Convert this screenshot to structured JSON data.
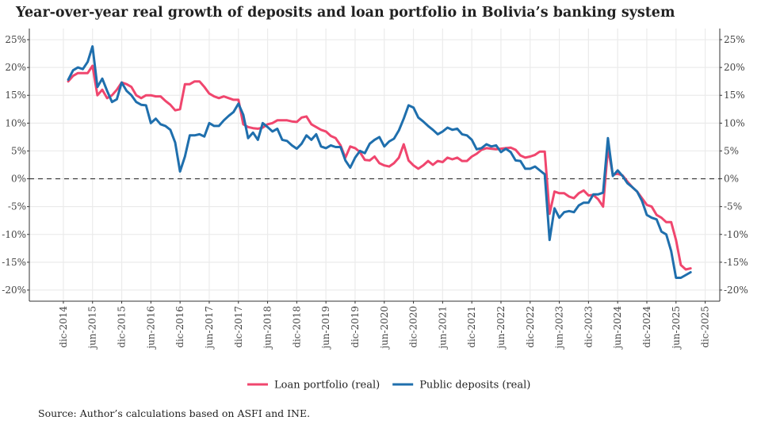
{
  "chart_data": {
    "type": "line",
    "title": "Year-over-year real growth of deposits and loan portfolio in Bolivia’s banking system",
    "source": "Source: Author’s calculations based on ASFI and INE.",
    "xlabel": "",
    "ylabel": "",
    "ylim": [
      -22,
      27
    ],
    "y_ticks": [
      25,
      20,
      15,
      10,
      5,
      0,
      -5,
      -10,
      -15,
      -20
    ],
    "y_tick_labels": [
      "25%",
      "20%",
      "15%",
      "10%",
      "5%",
      "0%",
      "-5%",
      "-10%",
      "-15%",
      "-20%"
    ],
    "x_tick_labels": [
      "dic-2014",
      "jun-2015",
      "dic-2015",
      "jun-2016",
      "dic-2016",
      "jun-2017",
      "dic-2017",
      "jun-2018",
      "dic-2018",
      "jun-2019",
      "dic-2019",
      "jun-2020",
      "dic-2020",
      "jun-2021",
      "dic-2021",
      "jun-2022",
      "dic-2022",
      "jun-2023",
      "dic-2023",
      "jun-2024",
      "dic-2024",
      "jun-2025",
      "dic-2025"
    ],
    "x_ticks": [
      "2014-12",
      "2015-06",
      "2015-12",
      "2016-06",
      "2016-12",
      "2017-06",
      "2017-12",
      "2018-06",
      "2018-12",
      "2019-06",
      "2019-12",
      "2020-06",
      "2020-12",
      "2021-06",
      "2021-12",
      "2022-06",
      "2022-12",
      "2023-06",
      "2023-12",
      "2024-06",
      "2024-12",
      "2025-06",
      "2025-12"
    ],
    "xlim": [
      "2014-05",
      "2026-03"
    ],
    "grid": true,
    "reference_line": {
      "y": 0,
      "style": "dashed"
    },
    "legend_position": "bottom",
    "dates_start": "2015-01",
    "frequency": "monthly",
    "series": [
      {
        "name": "Loan portfolio (real)",
        "color": "#f0466e",
        "values": [
          17.5,
          18.5,
          19,
          19,
          19,
          20.3,
          15,
          16,
          14.5,
          15,
          16,
          17.3,
          17,
          16.5,
          15,
          14.5,
          15,
          15,
          14.8,
          14.8,
          14,
          13.3,
          12.3,
          12.5,
          17,
          17,
          17.5,
          17.5,
          16.5,
          15.3,
          14.8,
          14.5,
          14.8,
          14.5,
          14.2,
          14.2,
          9.8,
          9.3,
          9.1,
          9,
          9.2,
          9.8,
          10,
          10.5,
          10.5,
          10.5,
          10.3,
          10.2,
          11,
          11.2,
          9.8,
          9.3,
          8.8,
          8.5,
          7.7,
          7.3,
          6,
          3.8,
          5.8,
          5.5,
          4.8,
          3.4,
          3.3,
          4,
          2.8,
          2.4,
          2.2,
          2.8,
          3.8,
          6.2,
          3.3,
          2.4,
          1.8,
          2.4,
          3.2,
          2.5,
          3.2,
          3,
          3.8,
          3.5,
          3.8,
          3.2,
          3.2,
          4,
          4.5,
          5.2,
          5.5,
          5.4,
          5.3,
          5.4,
          5.5,
          5.6,
          5.2,
          4.2,
          3.8,
          4,
          4.3,
          4.9,
          4.9,
          -6.3,
          -2.3,
          -2.6,
          -2.6,
          -3.2,
          -3.5,
          -2.6,
          -2.1,
          -3,
          -2.9,
          -3.7,
          -5,
          5.5,
          0.7,
          0.9,
          0.6,
          -0.5,
          -1.5,
          -2.3,
          -3.5,
          -4.7,
          -5,
          -6.5,
          -7,
          -7.8,
          -7.8,
          -11,
          -15.5,
          -16.3,
          -16.1
        ]
      },
      {
        "name": "Public deposits (real)",
        "color": "#1f6fad",
        "values": [
          17.8,
          19.5,
          20,
          19.7,
          21,
          23.8,
          16.5,
          18,
          15.8,
          13.8,
          14.3,
          17.3,
          15.8,
          15,
          13.8,
          13.3,
          13.2,
          10,
          10.8,
          9.8,
          9.5,
          8.8,
          6.5,
          1.3,
          4,
          7.8,
          7.8,
          8,
          7.6,
          10,
          9.5,
          9.5,
          10.5,
          11.3,
          12,
          13.5,
          11.5,
          7.3,
          8.3,
          7,
          10,
          9.3,
          8.5,
          9,
          7,
          6.8,
          6,
          5.4,
          6.3,
          7.8,
          7,
          8,
          5.8,
          5.5,
          6,
          5.7,
          5.7,
          3.3,
          2,
          3.8,
          5,
          4.6,
          6.3,
          7,
          7.5,
          5.8,
          6.7,
          7.2,
          8.7,
          10.8,
          13.2,
          12.8,
          11,
          10.3,
          9.5,
          8.8,
          8,
          8.5,
          9.2,
          8.8,
          9,
          8,
          7.8,
          7,
          5.3,
          5.5,
          6.2,
          5.8,
          6,
          4.8,
          5.4,
          4.8,
          3.3,
          3.2,
          1.8,
          1.8,
          2.2,
          1.5,
          0.8,
          -11,
          -5.3,
          -7,
          -6,
          -5.8,
          -6,
          -4.8,
          -4.3,
          -4.3,
          -2.8,
          -2.8,
          -2.5,
          7.3,
          0.5,
          1.5,
          0.5,
          -0.8,
          -1.5,
          -2.3,
          -4,
          -6.5,
          -7,
          -7.3,
          -9.5,
          -10,
          -13,
          -17.8,
          -17.8,
          -17.3,
          -16.8
        ]
      }
    ]
  }
}
